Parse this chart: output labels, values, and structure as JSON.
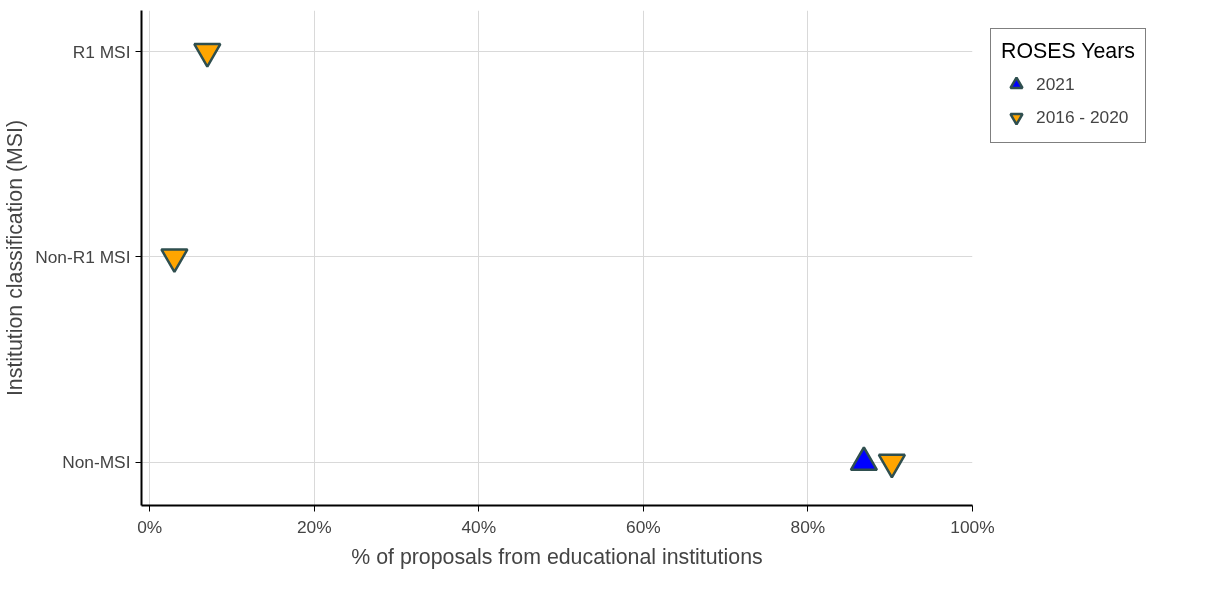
{
  "chart_data": {
    "type": "scatter",
    "orientation": "horizontal",
    "xlabel": "% of proposals from educational institutions",
    "ylabel": "Institution classification (MSI)",
    "legend_title": "ROSES Years",
    "categories": [
      "R1 MSI",
      "Non-R1 MSI",
      "Non-MSI"
    ],
    "series": [
      {
        "name": "2021",
        "color": "#0000ff",
        "values": [
          null,
          null,
          86.8
        ]
      },
      {
        "name": "2016 - 2020",
        "color": "#ffa500",
        "values": [
          7.0,
          3.0,
          90.2
        ]
      }
    ],
    "xlim": [
      -1,
      100
    ],
    "xticks": [
      {
        "value": 0,
        "label": "0%"
      },
      {
        "value": 20,
        "label": "20%"
      },
      {
        "value": 40,
        "label": "40%"
      },
      {
        "value": 60,
        "label": "60%"
      },
      {
        "value": 80,
        "label": "80%"
      },
      {
        "value": 100,
        "label": "100%"
      }
    ],
    "grid": true,
    "legend": "top right"
  }
}
